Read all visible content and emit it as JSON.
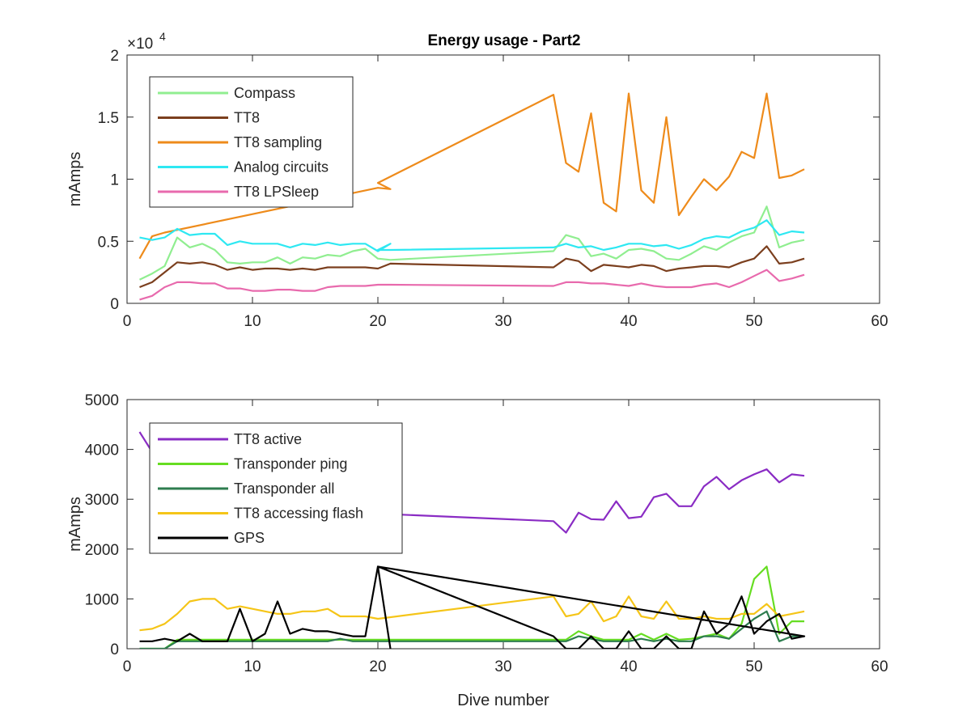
{
  "figure": {
    "title": "Energy usage - Part2"
  },
  "chart_data": [
    {
      "type": "line",
      "title": "Energy usage - Part2",
      "xlabel": "",
      "ylabel": "mAmps",
      "exponent_label": "×10",
      "exponent_power": "4",
      "xlim": [
        0,
        60
      ],
      "ylim": [
        0,
        20000
      ],
      "xticks": [
        0,
        10,
        20,
        30,
        40,
        50,
        60
      ],
      "xtick_labels": [
        "0",
        "10",
        "20",
        "30",
        "40",
        "50",
        "60"
      ],
      "yticks": [
        0,
        5000,
        10000,
        15000,
        20000
      ],
      "ytick_labels": [
        "0",
        "0.5",
        "1",
        "1.5",
        "2"
      ],
      "grid": false,
      "legend_position": "top-left",
      "series": [
        {
          "name": "Compass",
          "color": "#90ee90",
          "x": [
            1,
            2,
            3,
            4,
            5,
            6,
            7,
            8,
            9,
            10,
            11,
            12,
            13,
            14,
            15,
            16,
            17,
            18,
            19,
            20,
            21,
            34,
            35,
            36,
            37,
            38,
            39,
            40,
            41,
            42,
            43,
            44,
            45,
            46,
            47,
            48,
            49,
            50,
            51,
            52,
            53,
            54
          ],
          "y": [
            1900,
            2400,
            3000,
            5300,
            4500,
            4800,
            4300,
            3300,
            3200,
            3300,
            3300,
            3700,
            3200,
            3700,
            3600,
            3900,
            3800,
            4200,
            4400,
            3600,
            3500,
            4200,
            5500,
            5200,
            3800,
            4000,
            3600,
            4300,
            4400,
            4200,
            3600,
            3500,
            4000,
            4600,
            4300,
            4900,
            5400,
            5700,
            7800,
            4500,
            4900,
            5100
          ]
        },
        {
          "name": "TT8",
          "color": "#7b3f1e",
          "x": [
            1,
            2,
            3,
            4,
            5,
            6,
            7,
            8,
            9,
            10,
            11,
            12,
            13,
            14,
            15,
            16,
            17,
            18,
            19,
            20,
            21,
            34,
            35,
            36,
            37,
            38,
            39,
            40,
            41,
            42,
            43,
            44,
            45,
            46,
            47,
            48,
            49,
            50,
            51,
            52,
            53,
            54
          ],
          "y": [
            1300,
            1700,
            2500,
            3300,
            3200,
            3300,
            3100,
            2700,
            2900,
            2700,
            2800,
            2800,
            2700,
            2800,
            2700,
            2900,
            2900,
            2900,
            2900,
            2800,
            3200,
            2900,
            3600,
            3400,
            2600,
            3100,
            3000,
            2900,
            3100,
            3000,
            2600,
            2800,
            2900,
            3000,
            3000,
            2900,
            3300,
            3600,
            4600,
            3200,
            3300,
            3600
          ]
        },
        {
          "name": "TT8 sampling",
          "color": "#ee8b1b",
          "x": [
            1,
            2,
            3,
            20,
            21,
            20,
            34,
            35,
            36,
            37,
            38,
            39,
            40,
            41,
            42,
            43,
            44,
            45,
            46,
            47,
            48,
            49,
            50,
            51,
            52,
            53,
            54
          ],
          "y": [
            3600,
            5400,
            5700,
            9300,
            9200,
            9700,
            16800,
            11300,
            10600,
            15300,
            8100,
            7400,
            16900,
            9100,
            8100,
            15000,
            7100,
            8600,
            10000,
            9100,
            10200,
            12200,
            11700,
            16900,
            10100,
            10300,
            10800
          ]
        },
        {
          "name": "Analog circuits",
          "color": "#2ee8f2",
          "x": [
            1,
            2,
            3,
            4,
            5,
            6,
            7,
            8,
            9,
            10,
            11,
            12,
            13,
            14,
            15,
            16,
            17,
            18,
            19,
            20,
            21,
            20,
            21,
            34,
            35,
            36,
            37,
            38,
            39,
            40,
            41,
            42,
            43,
            44,
            45,
            46,
            47,
            48,
            49,
            50,
            51,
            52,
            53,
            54
          ],
          "y": [
            5300,
            5100,
            5300,
            6000,
            5500,
            5600,
            5600,
            4700,
            5000,
            4800,
            4800,
            4800,
            4500,
            4800,
            4700,
            4900,
            4700,
            4800,
            4800,
            4200,
            4800,
            4300,
            4300,
            4500,
            4800,
            4500,
            4600,
            4300,
            4500,
            4800,
            4800,
            4600,
            4700,
            4400,
            4700,
            5200,
            5400,
            5300,
            5800,
            6100,
            6700,
            5500,
            5800,
            5700
          ]
        },
        {
          "name": "TT8 LPSleep",
          "color": "#e86aad",
          "x": [
            1,
            2,
            3,
            4,
            5,
            6,
            7,
            8,
            9,
            10,
            11,
            12,
            13,
            14,
            15,
            16,
            17,
            18,
            19,
            20,
            21,
            34,
            35,
            36,
            37,
            38,
            39,
            40,
            41,
            42,
            43,
            44,
            45,
            46,
            47,
            48,
            49,
            50,
            51,
            52,
            53,
            54
          ],
          "y": [
            300,
            600,
            1300,
            1700,
            1700,
            1600,
            1600,
            1200,
            1200,
            1000,
            1000,
            1100,
            1100,
            1000,
            1000,
            1300,
            1400,
            1400,
            1400,
            1500,
            1500,
            1400,
            1700,
            1700,
            1600,
            1600,
            1500,
            1400,
            1600,
            1400,
            1300,
            1300,
            1300,
            1500,
            1600,
            1300,
            1700,
            2200,
            2700,
            1800,
            2000,
            2300
          ]
        }
      ]
    },
    {
      "type": "line",
      "title": "",
      "xlabel": "Dive number",
      "ylabel": "mAmps",
      "xlim": [
        0,
        60
      ],
      "ylim": [
        0,
        5000
      ],
      "xticks": [
        0,
        10,
        20,
        30,
        40,
        50,
        60
      ],
      "xtick_labels": [
        "0",
        "10",
        "20",
        "30",
        "40",
        "50",
        "60"
      ],
      "yticks": [
        0,
        1000,
        2000,
        3000,
        4000,
        5000
      ],
      "ytick_labels": [
        "0",
        "1000",
        "2000",
        "3000",
        "4000",
        "5000"
      ],
      "grid": false,
      "legend_position": "top-left",
      "series": [
        {
          "name": "TT8 active",
          "color": "#8a2cc4",
          "x": [
            1,
            2,
            3,
            4,
            20,
            21,
            34,
            35,
            36,
            37,
            38,
            39,
            40,
            41,
            42,
            43,
            44,
            45,
            46,
            47,
            48,
            49,
            50,
            51,
            52,
            53,
            54
          ],
          "y": [
            4350,
            3950,
            3800,
            3700,
            2750,
            2700,
            2560,
            2330,
            2730,
            2600,
            2590,
            2960,
            2620,
            2650,
            3040,
            3110,
            2860,
            2860,
            3260,
            3450,
            3200,
            3380,
            3500,
            3600,
            3340,
            3500,
            3470
          ]
        },
        {
          "name": "Transponder ping",
          "color": "#66dd22",
          "x": [
            1,
            2,
            3,
            4,
            5,
            6,
            7,
            8,
            9,
            10,
            15,
            16,
            17,
            18,
            19,
            20,
            21,
            34,
            35,
            36,
            37,
            38,
            39,
            40,
            41,
            42,
            43,
            44,
            45,
            46,
            47,
            48,
            49,
            50,
            51,
            52,
            53,
            54
          ],
          "y": [
            0,
            0,
            0,
            180,
            180,
            180,
            180,
            180,
            180,
            180,
            180,
            180,
            180,
            180,
            180,
            180,
            180,
            180,
            180,
            350,
            250,
            180,
            180,
            180,
            300,
            180,
            300,
            180,
            200,
            250,
            300,
            200,
            500,
            1400,
            1650,
            300,
            550,
            550
          ]
        },
        {
          "name": "Transponder all",
          "color": "#2e7d4f",
          "x": [
            1,
            2,
            3,
            4,
            5,
            6,
            7,
            8,
            9,
            10,
            15,
            16,
            17,
            18,
            19,
            20,
            21,
            34,
            35,
            36,
            37,
            38,
            39,
            40,
            41,
            42,
            43,
            44,
            45,
            46,
            47,
            48,
            49,
            50,
            51,
            52,
            53,
            54
          ],
          "y": [
            0,
            0,
            0,
            150,
            150,
            150,
            150,
            150,
            150,
            150,
            150,
            150,
            200,
            150,
            150,
            150,
            150,
            150,
            150,
            250,
            200,
            150,
            150,
            150,
            200,
            150,
            200,
            150,
            150,
            250,
            250,
            200,
            400,
            600,
            750,
            150,
            250,
            250
          ]
        },
        {
          "name": "TT8 accessing flash",
          "color": "#f5c518",
          "x": [
            1,
            2,
            3,
            4,
            5,
            6,
            7,
            8,
            9,
            10,
            11,
            12,
            13,
            14,
            15,
            16,
            17,
            18,
            19,
            20,
            34,
            35,
            36,
            37,
            38,
            39,
            40,
            41,
            42,
            43,
            44,
            45,
            46,
            47,
            48,
            49,
            50,
            51,
            52,
            53,
            54
          ],
          "y": [
            370,
            400,
            500,
            700,
            950,
            1000,
            1000,
            800,
            850,
            800,
            750,
            700,
            700,
            750,
            750,
            800,
            650,
            650,
            650,
            600,
            1050,
            650,
            700,
            950,
            550,
            650,
            1050,
            650,
            600,
            950,
            600,
            600,
            650,
            600,
            600,
            700,
            700,
            900,
            650,
            700,
            750
          ]
        },
        {
          "name": "GPS",
          "color": "#000000",
          "x": [
            1,
            2,
            3,
            4,
            5,
            6,
            7,
            8,
            9,
            10,
            11,
            12,
            13,
            14,
            15,
            16,
            17,
            18,
            19,
            20,
            34,
            35,
            36,
            37,
            38,
            39,
            40,
            41,
            42,
            43,
            44,
            45,
            46,
            47,
            48,
            49,
            50,
            51,
            52,
            53,
            54,
            20,
            21
          ],
          "y": [
            150,
            150,
            200,
            150,
            300,
            150,
            150,
            150,
            800,
            150,
            300,
            950,
            300,
            400,
            350,
            350,
            300,
            250,
            250,
            1650,
            250,
            0,
            0,
            250,
            0,
            0,
            350,
            0,
            0,
            250,
            0,
            0,
            750,
            300,
            500,
            1050,
            300,
            550,
            700,
            200,
            250,
            1650,
            0
          ]
        }
      ]
    }
  ]
}
